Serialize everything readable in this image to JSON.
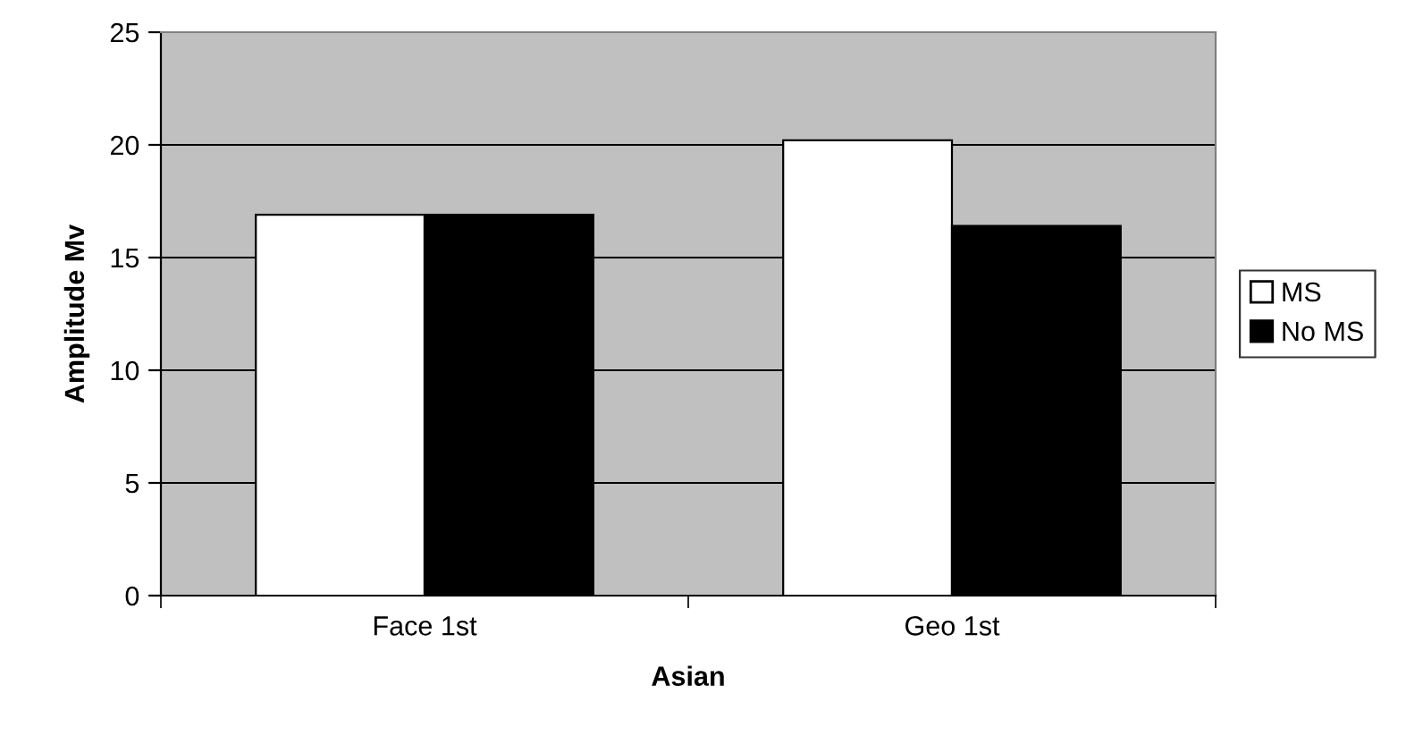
{
  "chart_data": {
    "type": "bar",
    "xlabel": "Asian",
    "ylabel": "Amplitude Mv",
    "categories": [
      "Face 1st",
      "Geo 1st"
    ],
    "series": [
      {
        "name": "MS",
        "color": "#ffffff",
        "values": [
          16.9,
          20.2
        ]
      },
      {
        "name": "No MS",
        "color": "#000000",
        "values": [
          16.9,
          16.4
        ]
      }
    ],
    "ylim": [
      0,
      25
    ],
    "yticks": [
      0,
      5,
      10,
      15,
      20,
      25
    ],
    "grid": "y",
    "legend": "right"
  }
}
